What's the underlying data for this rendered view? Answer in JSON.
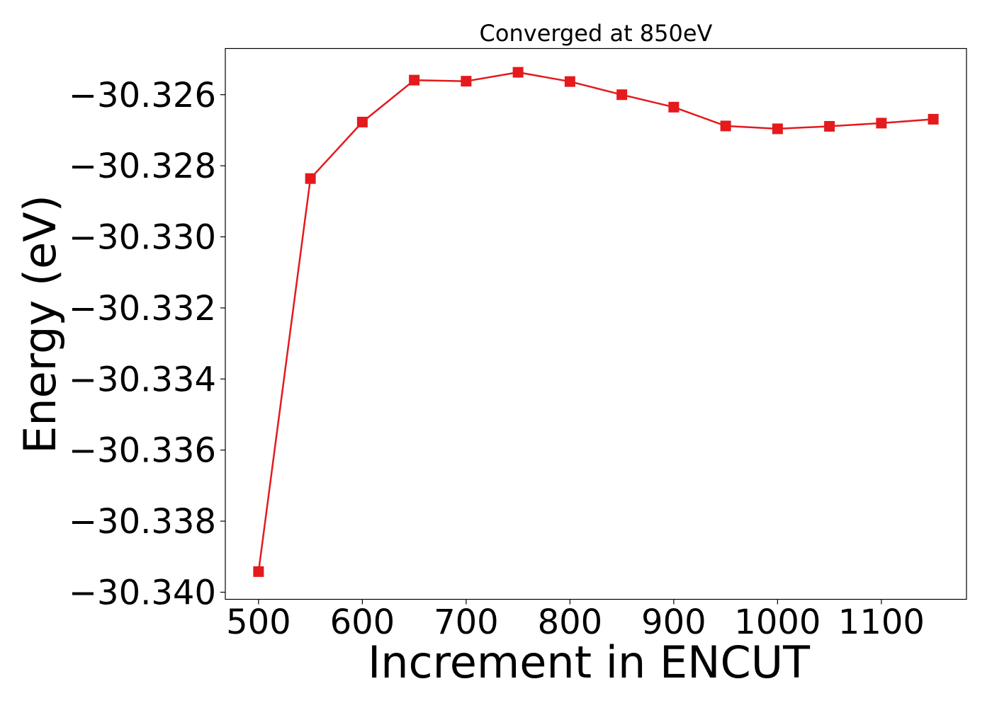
{
  "chart_data": {
    "type": "line",
    "title": "Converged at 850eV",
    "xlabel": "Increment in ENCUT",
    "ylabel": "Energy (eV)",
    "xlim": [
      468,
      1182
    ],
    "ylim": [
      -30.3402,
      -30.3247
    ],
    "x_ticks": [
      500,
      600,
      700,
      800,
      900,
      1000,
      1100
    ],
    "x_tick_labels": [
      "500",
      "600",
      "700",
      "800",
      "900",
      "1000",
      "1100"
    ],
    "y_ticks": [
      -30.326,
      -30.328,
      -30.33,
      -30.332,
      -30.334,
      -30.336,
      -30.338,
      -30.34
    ],
    "y_tick_labels": [
      "−30.326",
      "−30.328",
      "−30.330",
      "−30.332",
      "−30.334",
      "−30.336",
      "−30.338",
      "−30.340"
    ],
    "grid": false,
    "series": [
      {
        "color": "#e41a1c",
        "marker": "square",
        "x": [
          500,
          550,
          600,
          650,
          700,
          750,
          800,
          850,
          900,
          950,
          1000,
          1050,
          1100,
          1150
        ],
        "y": [
          -30.33942,
          -30.32836,
          -30.32677,
          -30.32559,
          -30.32562,
          -30.32537,
          -30.32563,
          -30.326,
          -30.32635,
          -30.32688,
          -30.32696,
          -30.32689,
          -30.3268,
          -30.32669
        ]
      }
    ]
  }
}
